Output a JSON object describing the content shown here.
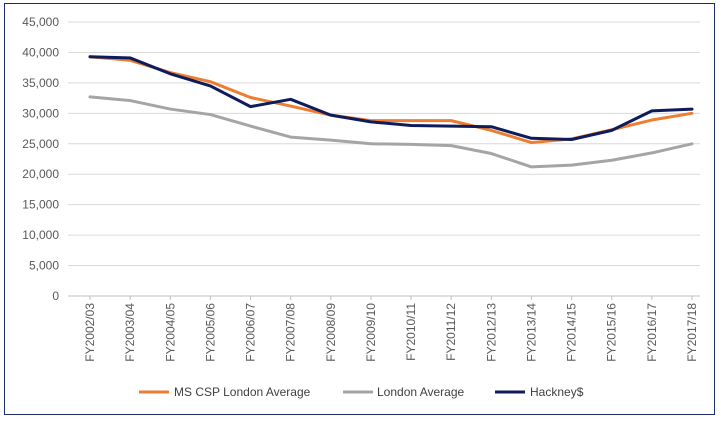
{
  "chart_data": {
    "type": "line",
    "title": "",
    "xlabel": "",
    "ylabel": "",
    "ylim": [
      0,
      45000
    ],
    "y_ticks": [
      0,
      5000,
      10000,
      15000,
      20000,
      25000,
      30000,
      35000,
      40000,
      45000
    ],
    "y_tick_labels": [
      "0",
      "5,000",
      "10,000",
      "15,000",
      "20,000",
      "25,000",
      "30,000",
      "35,000",
      "40,000",
      "45,000"
    ],
    "grid": "horizontal",
    "legend_position": "bottom",
    "categories": [
      "FY2002/03",
      "FY2003/04",
      "FY2004/05",
      "FY2005/06",
      "FY2006/07",
      "FY2007/08",
      "FY2008/09",
      "FY2009/10",
      "FY2010/11",
      "FY2011/12",
      "FY2012/13",
      "FY2013/14",
      "FY2014/15",
      "FY2015/16",
      "FY2016/17",
      "FY2017/18"
    ],
    "series": [
      {
        "name": "MS CSP London Average",
        "color": "#ed7d31",
        "values": [
          39300,
          38700,
          36700,
          35200,
          32600,
          31200,
          29700,
          28800,
          28800,
          28800,
          27200,
          25200,
          25800,
          27300,
          28900,
          30000
        ]
      },
      {
        "name": "London Average",
        "color": "#a5a5a5",
        "values": [
          32700,
          32100,
          30700,
          29800,
          27900,
          26100,
          25600,
          25000,
          24900,
          24700,
          23400,
          21200,
          21500,
          22300,
          23500,
          25000
        ]
      },
      {
        "name": "Hackney$",
        "color": "#0f1c5c",
        "values": [
          39300,
          39100,
          36500,
          34500,
          31100,
          32300,
          29700,
          28600,
          28000,
          27900,
          27800,
          25900,
          25700,
          27200,
          30400,
          30700
        ]
      }
    ]
  }
}
